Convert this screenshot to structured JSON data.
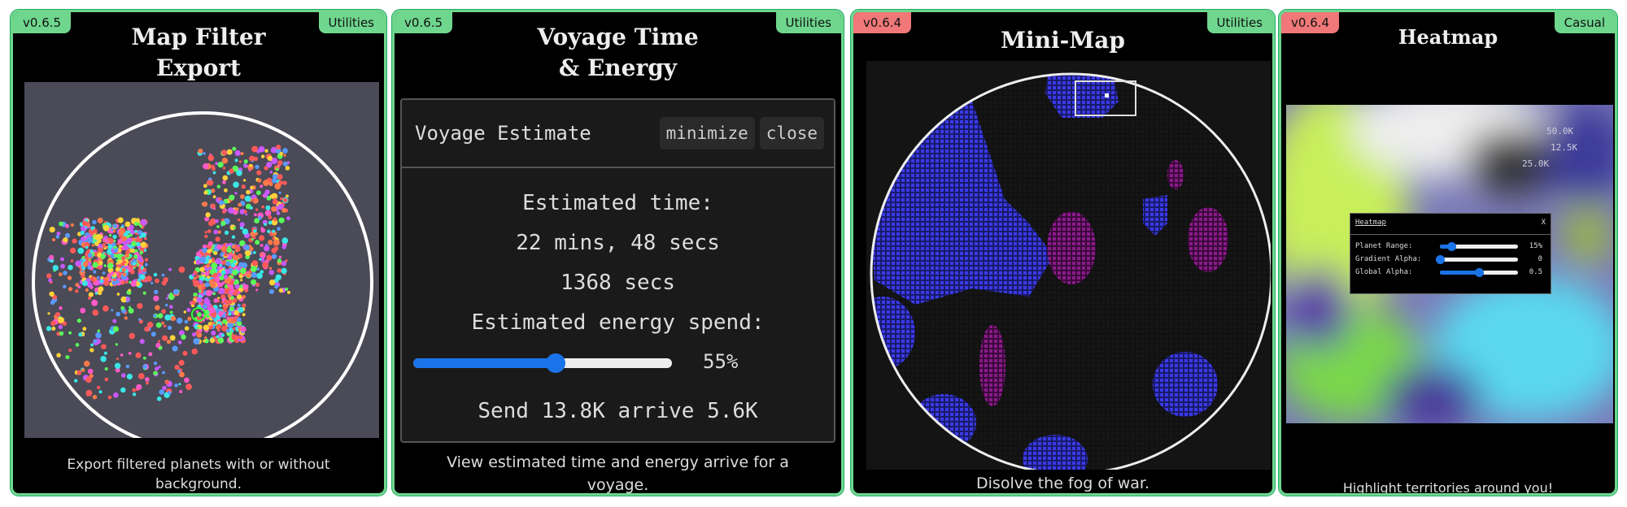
{
  "cards": [
    {
      "version": "v0.6.5",
      "version_color": "#6fd68e",
      "category": "Utilities",
      "title_line1": "Map Filter",
      "title_line2": "Export",
      "description": "Export filtered planets with or without background."
    },
    {
      "version": "v0.6.5",
      "version_color": "#6fd68e",
      "category": "Utilities",
      "title_line1": "Voyage Time",
      "title_line2": "& Energy",
      "description": "View estimated time and energy arrive for a voyage."
    },
    {
      "version": "v0.6.4",
      "version_color": "#f07878",
      "category": "Utilities",
      "title_line1": "Mini-Map",
      "description": "Disolve the fog of war."
    },
    {
      "version": "v0.6.4",
      "version_color": "#f07878",
      "category": "Casual",
      "title_line1": "Heatmap",
      "description": "Highlight territories around you!"
    }
  ],
  "voyage": {
    "panel_title": "Voyage Estimate",
    "minimize": "minimize",
    "close": "close",
    "time_label": "Estimated time:",
    "time_value": "22 mins, 48 secs",
    "time_secs": "1368 secs",
    "energy_label": "Estimated energy spend:",
    "energy_percent": 55,
    "energy_text": "55%",
    "send_arrive": "Send 13.8K arrive 5.6K"
  },
  "heatmap": {
    "panel_title": "Heatmap",
    "close": "X",
    "controls": [
      {
        "label": "Planet Range:",
        "value": "15%",
        "fraction": 0.15
      },
      {
        "label": "Gradient Alpha:",
        "value": "0",
        "fraction": 0
      },
      {
        "label": "Global Alpha:",
        "value": "0.5",
        "fraction": 0.5
      }
    ],
    "map_labels": [
      "50.0K",
      "12.5K",
      "25.0K"
    ]
  }
}
